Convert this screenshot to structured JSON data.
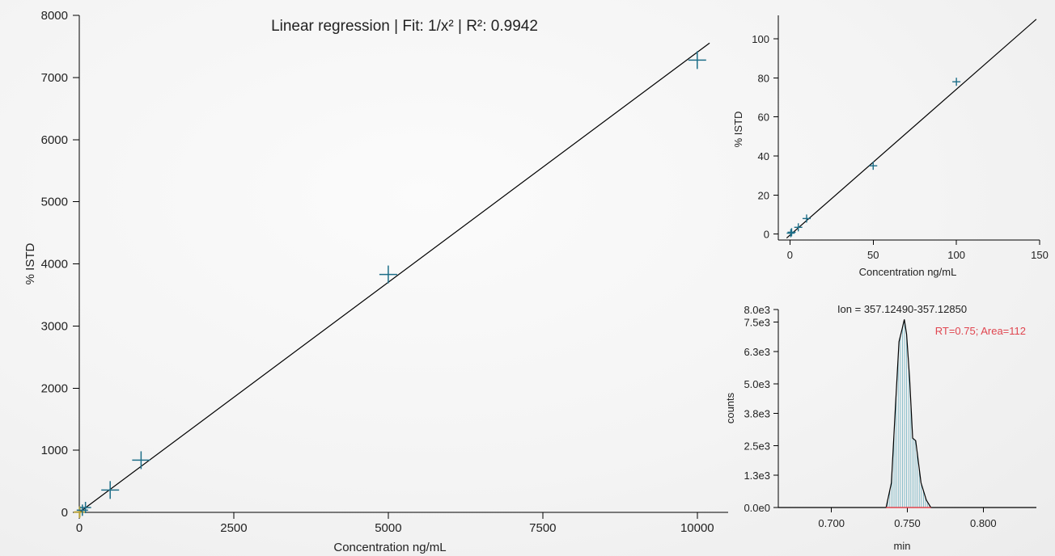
{
  "chart_data": [
    {
      "type": "scatter",
      "title": "Linear regression | Fit: 1/x² | R²: 0.9942",
      "xlabel": "Concentration ng/mL",
      "ylabel": "% ISTD",
      "xlim": [
        0,
        10500
      ],
      "ylim": [
        0,
        8000
      ],
      "xticks": [
        "0",
        "2500",
        "5000",
        "7500",
        "10000"
      ],
      "xtick_values": [
        0,
        2500,
        5000,
        7500,
        10000
      ],
      "yticks": [
        "0",
        "1000",
        "2000",
        "3000",
        "4000",
        "5000",
        "6000",
        "7000",
        "8000"
      ],
      "ytick_values": [
        0,
        1000,
        2000,
        3000,
        4000,
        5000,
        6000,
        7000,
        8000
      ],
      "series": [
        {
          "x": [
            1,
            5,
            10,
            50,
            100,
            500,
            1000,
            5000,
            10000
          ],
          "y": [
            1,
            3,
            8,
            35,
            78,
            360,
            840,
            3830,
            7280
          ]
        }
      ],
      "fit_line": {
        "x": [
          0,
          10200
        ],
        "y": [
          0,
          7555
        ]
      },
      "colors": {
        "marker": "#1d6e88",
        "low_marker": "#b8a23a",
        "line": "#000000"
      }
    },
    {
      "type": "scatter",
      "title": "",
      "xlabel": "Concentration ng/mL",
      "ylabel": "% ISTD",
      "xlim": [
        -7,
        150
      ],
      "ylim": [
        -3,
        112
      ],
      "xticks": [
        "0",
        "50",
        "100",
        "150"
      ],
      "xtick_values": [
        0,
        50,
        100,
        150
      ],
      "yticks": [
        "0",
        "20",
        "40",
        "60",
        "80",
        "100"
      ],
      "ytick_values": [
        0,
        20,
        40,
        60,
        80,
        100
      ],
      "series": [
        {
          "x": [
            0.5,
            1,
            5,
            10,
            50,
            100
          ],
          "y": [
            0.5,
            1,
            3.5,
            8,
            35,
            78
          ]
        }
      ],
      "fit_line": {
        "x": [
          -2,
          148
        ],
        "y": [
          -2,
          110
        ]
      },
      "colors": {
        "marker": "#1d6e88",
        "line": "#000000"
      }
    },
    {
      "type": "area",
      "title": "Ion = 357.12490-357.12850",
      "annotation": "RT=0.75; Area=112",
      "xlabel": "min",
      "ylabel": "counts",
      "xlim": [
        0.665,
        0.835
      ],
      "ylim": [
        0,
        8000
      ],
      "xticks": [
        "0.700",
        "0.750",
        "0.800"
      ],
      "xtick_values": [
        0.7,
        0.75,
        0.8
      ],
      "yticks": [
        "0.0e0",
        "1.3e3",
        "2.5e3",
        "3.8e3",
        "5.0e3",
        "6.3e3",
        "7.5e3",
        "8.0e3"
      ],
      "ytick_values": [
        0,
        1300,
        2500,
        3800,
        5000,
        6300,
        7500,
        8000
      ],
      "x": [
        0.736,
        0.7395,
        0.742,
        0.7445,
        0.7465,
        0.748,
        0.7495,
        0.7515,
        0.7535,
        0.7555,
        0.759,
        0.7625,
        0.7655
      ],
      "y": [
        0,
        1000,
        3900,
        6700,
        7200,
        7600,
        7000,
        5200,
        2800,
        2700,
        1000,
        300,
        0
      ],
      "baseline": [
        0.736,
        0.7655
      ],
      "colors": {
        "trace": "#000000",
        "fill_lines": "#5aa7b8",
        "annotation": "#e0454f",
        "baseline": "#e0454f"
      }
    }
  ]
}
